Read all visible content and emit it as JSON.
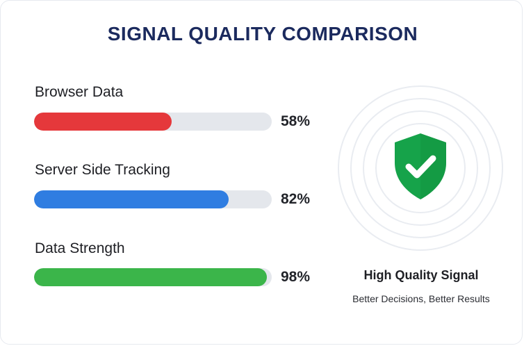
{
  "header": {
    "title": "SIGNAL QUALITY COMPARISON"
  },
  "chart_data": {
    "type": "bar",
    "orientation": "horizontal",
    "title": "SIGNAL QUALITY COMPARISON",
    "xlabel": "",
    "ylabel": "",
    "xlim": [
      0,
      100
    ],
    "grid": false,
    "categories": [
      "Browser Data",
      "Server Side Tracking",
      "Data Strength"
    ],
    "values": [
      58,
      82,
      98
    ],
    "value_labels": [
      "58%",
      "82%",
      "98%"
    ],
    "colors": [
      "#e5383b",
      "#2f7de1",
      "#3bb54a"
    ]
  },
  "badge": {
    "icon": "shield-check-icon",
    "color": "#16a34a",
    "caption": "High Quality Signal",
    "subcaption": "Better Decisions, Better Results"
  }
}
